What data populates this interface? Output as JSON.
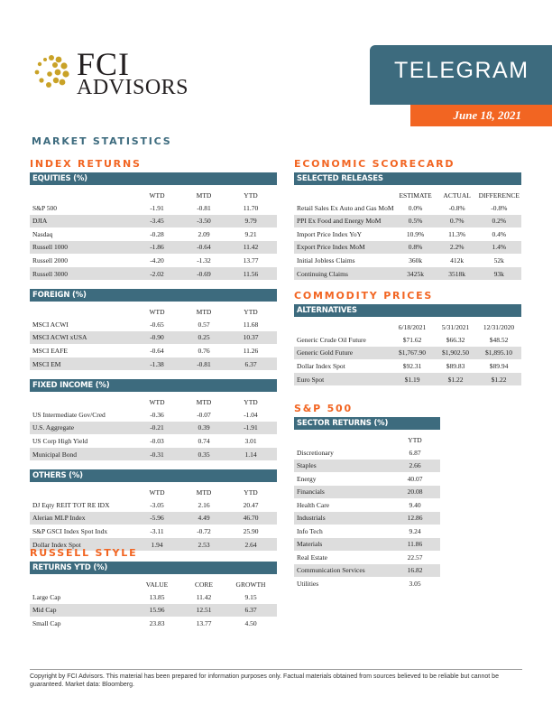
{
  "logo": {
    "line1": "FCI",
    "line2": "ADVISORS",
    "mark_color": "#c9a227"
  },
  "header": {
    "title": "TELEGRAM",
    "date": "June 18, 2021"
  },
  "colors": {
    "teal": "#3d6b7e",
    "orange": "#f26522"
  },
  "market_statistics": "MARKET STATISTICS",
  "index_returns": {
    "heading": "INDEX RETURNS",
    "tables": [
      {
        "title": "EQUITIES (%)",
        "columns": [
          "",
          "WTD",
          "MTD",
          "YTD"
        ],
        "rows": [
          [
            "S&P 500",
            "-1.91",
            "-0.81",
            "11.70"
          ],
          [
            "DJIA",
            "-3.45",
            "-3.50",
            "9.79"
          ],
          [
            "Nasdaq",
            "-0.28",
            "2.09",
            "9.21"
          ],
          [
            "Russell 1000",
            "-1.86",
            "-0.64",
            "11.42"
          ],
          [
            "Russell 2000",
            "-4.20",
            "-1.32",
            "13.77"
          ],
          [
            "Russell 3000",
            "-2.02",
            "-0.69",
            "11.56"
          ]
        ]
      },
      {
        "title": "FOREIGN (%)",
        "columns": [
          "",
          "WTD",
          "MTD",
          "YTD"
        ],
        "rows": [
          [
            "MSCI ACWI",
            "-0.65",
            "0.57",
            "11.68"
          ],
          [
            "MSCI ACWI xUSA",
            "-0.90",
            "0.25",
            "10.37"
          ],
          [
            "MSCI EAFE",
            "-0.64",
            "0.76",
            "11.26"
          ],
          [
            "MSCI EM",
            "-1.38",
            "-0.81",
            "6.37"
          ]
        ]
      },
      {
        "title": "FIXED INCOME (%)",
        "columns": [
          "",
          "WTD",
          "MTD",
          "YTD"
        ],
        "rows": [
          [
            "US Intermediate Gov/Cred",
            "-0.36",
            "-0.07",
            "-1.04"
          ],
          [
            "U.S. Aggregate",
            "-0.21",
            "0.39",
            "-1.91"
          ],
          [
            "US Corp High Yield",
            "-0.03",
            "0.74",
            "3.01"
          ],
          [
            "Municipal Bond",
            "-0.31",
            "0.35",
            "1.14"
          ]
        ]
      },
      {
        "title": "OTHERS (%)",
        "columns": [
          "",
          "WTD",
          "MTD",
          "YTD"
        ],
        "rows": [
          [
            "DJ Eqty REIT TOT RE IDX",
            "-3.05",
            "2.16",
            "20.47"
          ],
          [
            "Alerian MLP Index",
            "-5.96",
            "4.49",
            "46.70"
          ],
          [
            "S&P GSCI Index Spot Indx",
            "-3.11",
            "-0.72",
            "25.90"
          ],
          [
            "Dollar Index Spot",
            "1.94",
            "2.53",
            "2.64"
          ]
        ]
      }
    ]
  },
  "russell_style": {
    "heading": "RUSSELL STYLE",
    "tables": [
      {
        "title": "RETURNS YTD (%)",
        "columns": [
          "",
          "VALUE",
          "CORE",
          "GROWTH"
        ],
        "rows": [
          [
            "Large Cap",
            "13.85",
            "11.42",
            "9.15"
          ],
          [
            "Mid Cap",
            "15.96",
            "12.51",
            "6.37"
          ],
          [
            "Small Cap",
            "23.83",
            "13.77",
            "4.50"
          ]
        ]
      }
    ]
  },
  "economic_scorecard": {
    "heading": "ECONOMIC SCORECARD",
    "tables": [
      {
        "title": "SELECTED RELEASES",
        "columns": [
          "",
          "ESTIMATE",
          "ACTUAL",
          "DIFFERENCE"
        ],
        "rows": [
          [
            "Retail Sales Ex Auto and Gas MoM",
            "0.0%",
            "-0.8%",
            "-0.8%"
          ],
          [
            "PPI Ex Food and Energy MoM",
            "0.5%",
            "0.7%",
            "0.2%"
          ],
          [
            "Import Price Index YoY",
            "10.9%",
            "11.3%",
            "0.4%"
          ],
          [
            "Export Price Index MoM",
            "0.8%",
            "2.2%",
            "1.4%"
          ],
          [
            "Initial Jobless Claims",
            "360k",
            "412k",
            "52k"
          ],
          [
            "Continuing Claims",
            "3425k",
            "3518k",
            "93k"
          ]
        ]
      }
    ]
  },
  "commodity_prices": {
    "heading": "COMMODITY PRICES",
    "tables": [
      {
        "title": "ALTERNATIVES",
        "columns": [
          "",
          "6/18/2021",
          "5/31/2021",
          "12/31/2020"
        ],
        "rows": [
          [
            "Generic Crude Oil Future",
            "$71.62",
            "$66.32",
            "$48.52"
          ],
          [
            "Generic Gold Future",
            "$1,767.90",
            "$1,902.50",
            "$1,895.10"
          ],
          [
            "Dollar Index Spot",
            "$92.31",
            "$89.83",
            "$89.94"
          ],
          [
            "Euro Spot",
            "$1.19",
            "$1.22",
            "$1.22"
          ]
        ]
      }
    ]
  },
  "sp500": {
    "heading": "S&P 500",
    "tables": [
      {
        "title": "SECTOR RETURNS (%)",
        "columns": [
          "",
          "YTD"
        ],
        "rows": [
          [
            "Discretionary",
            "6.87"
          ],
          [
            "Staples",
            "2.66"
          ],
          [
            "Energy",
            "40.07"
          ],
          [
            "Financials",
            "20.08"
          ],
          [
            "Health Care",
            "9.40"
          ],
          [
            "Industrials",
            "12.86"
          ],
          [
            "Info Tech",
            "9.24"
          ],
          [
            "Materials",
            "11.86"
          ],
          [
            "Real Estate",
            "22.57"
          ],
          [
            "Communication Services",
            "16.82"
          ],
          [
            "Utilities",
            "3.05"
          ]
        ]
      }
    ]
  },
  "footer": "Copyright by FCI Advisors. This material has been prepared for information purposes only. Factual materials obtained from sources believed to be reliable but cannot be guaranteed. Market data: Bloomberg."
}
